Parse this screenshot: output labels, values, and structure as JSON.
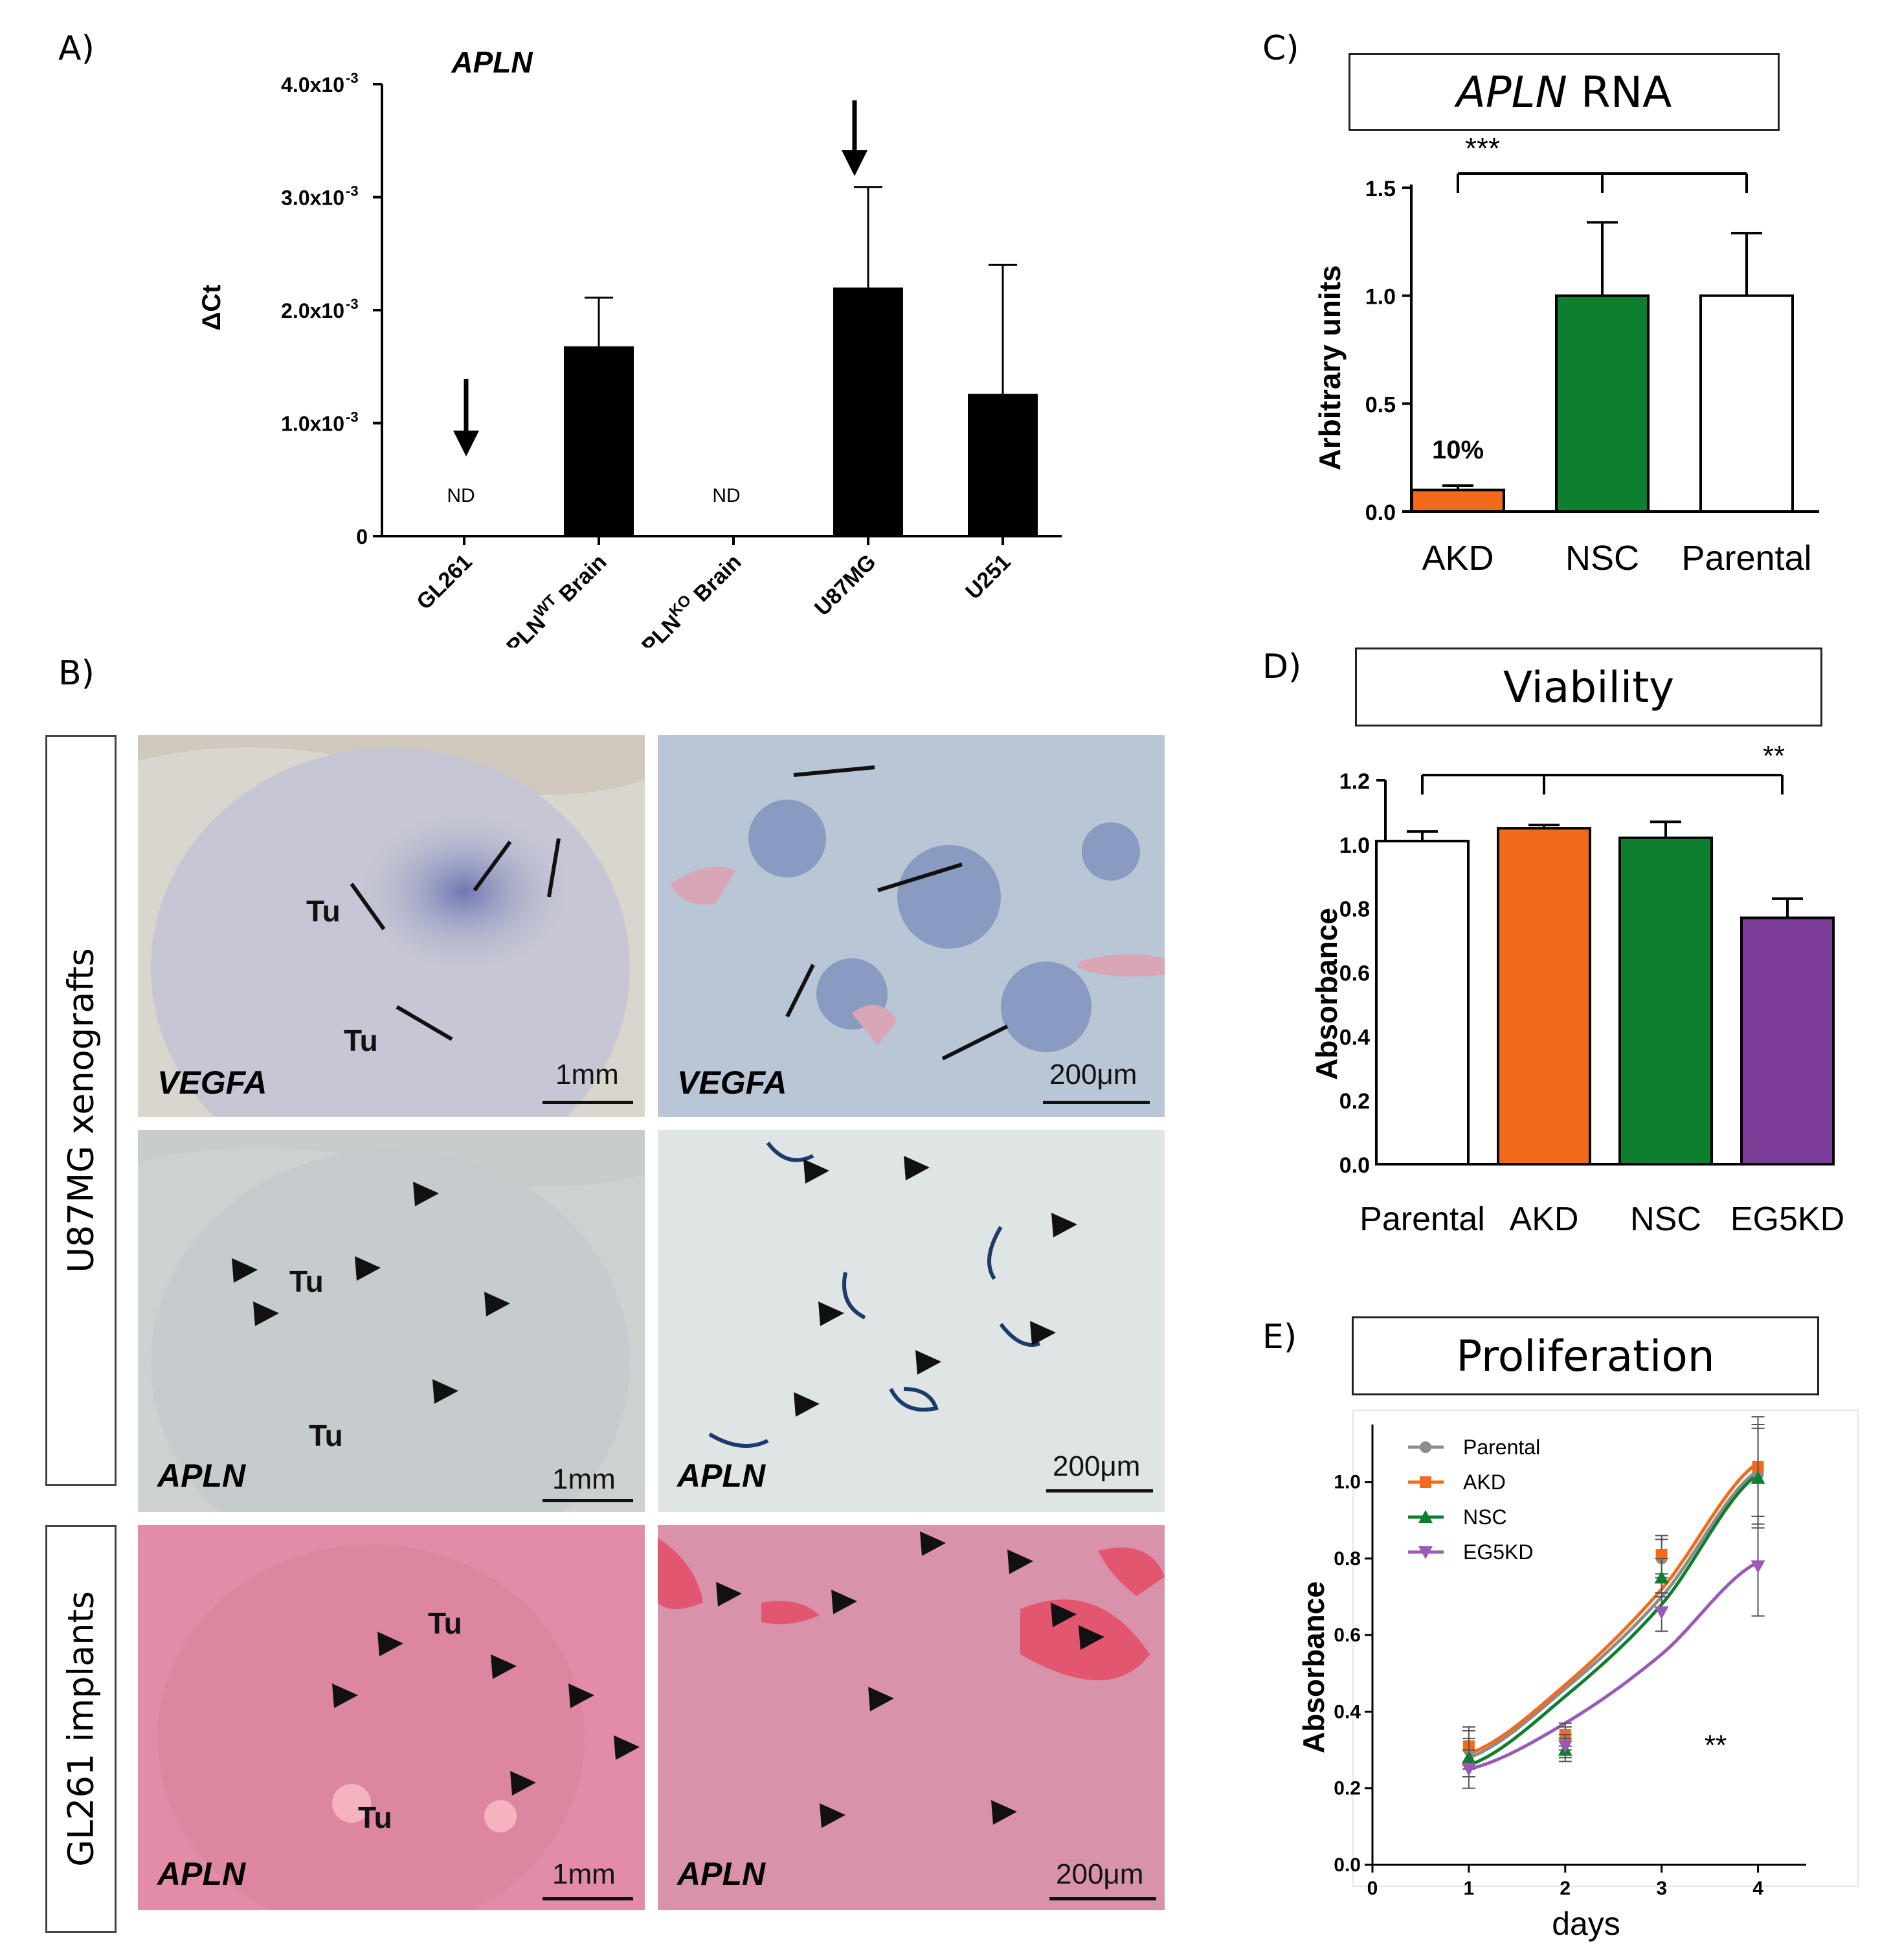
{
  "panel_labels": {
    "a": "A)",
    "b": "B)",
    "c": "C)",
    "d": "D)",
    "e": "E)"
  },
  "chart_data": [
    {
      "id": "A",
      "type": "bar",
      "title": "APLN",
      "ylabel": "ΔCt",
      "xlabel": "",
      "ylim": [
        0,
        0.004
      ],
      "yticks": [
        {
          "value": 0,
          "label": "0"
        },
        {
          "value": 0.001,
          "label": "1.0x10",
          "exp": "-3"
        },
        {
          "value": 0.002,
          "label": "2.0x10",
          "exp": "-3"
        },
        {
          "value": 0.003,
          "label": "3.0x10",
          "exp": "-3"
        },
        {
          "value": 0.004,
          "label": "4.0x10",
          "exp": "-3"
        }
      ],
      "categories": [
        "GL261",
        "APLNWT Brain",
        "APLNKO Brain",
        "U87MG",
        "U251"
      ],
      "category_labels": [
        {
          "main": "GL261",
          "sup": "",
          "tail": ""
        },
        {
          "main": "APLN",
          "sup": "WT",
          "tail": " Brain"
        },
        {
          "main": "APLN",
          "sup": "KO",
          "tail": " Brain"
        },
        {
          "main": "U87MG",
          "sup": "",
          "tail": ""
        },
        {
          "main": "U251",
          "sup": "",
          "tail": ""
        }
      ],
      "values": [
        null,
        0.00168,
        null,
        0.0022,
        0.00126
      ],
      "errors": [
        null,
        0.00043,
        null,
        0.00089,
        0.00114
      ],
      "bar_color": "#000000",
      "annotations": [
        "ND",
        "ND"
      ]
    },
    {
      "id": "C",
      "type": "bar",
      "title": "APLN RNA",
      "title_italic": "APLN",
      "title_rest": " RNA",
      "ylabel": "Arbitrary units",
      "ylim": [
        0,
        1.5
      ],
      "yticks": [
        "0.0",
        "0.5",
        "1.0",
        "1.5"
      ],
      "categories": [
        "AKD",
        "NSC",
        "Parental"
      ],
      "values": [
        0.1,
        1.0,
        1.0
      ],
      "errors": [
        0.02,
        0.34,
        0.29
      ],
      "colors": [
        "#F26A1B",
        "#0E7F2E",
        "#FFFFFF"
      ],
      "bar_annotation": "10%",
      "significance": "***"
    },
    {
      "id": "D",
      "type": "bar",
      "title": "Viability",
      "ylabel": "Absorbance",
      "ylim": [
        0,
        1.2
      ],
      "yticks": [
        "0.0",
        "0.2",
        "0.4",
        "0.6",
        "0.8",
        "1.0",
        "1.2"
      ],
      "categories": [
        "Parental",
        "AKD",
        "NSC",
        "EG5KD"
      ],
      "values": [
        1.01,
        1.05,
        1.02,
        0.77
      ],
      "errors": [
        0.03,
        0.01,
        0.05,
        0.06
      ],
      "colors": [
        "#FFFFFF",
        "#F26A1B",
        "#0E7F2E",
        "#7D3C98"
      ],
      "significance": "**"
    },
    {
      "id": "E",
      "type": "line",
      "title": "Proliferation",
      "xlabel": "days",
      "ylabel": "Absorbance",
      "xlim": [
        0,
        4.5
      ],
      "ylim": [
        0,
        1.15
      ],
      "xticks": [
        "0",
        "1",
        "2",
        "3",
        "4"
      ],
      "yticks": [
        "0.0",
        "0.2",
        "0.4",
        "0.6",
        "0.8",
        "1.0"
      ],
      "x": [
        1,
        2,
        3,
        4
      ],
      "series": [
        {
          "name": "Parental",
          "color": "#8C8C8C",
          "marker": "circle",
          "values": [
            0.3,
            0.33,
            0.8,
            1.02
          ],
          "fit": [
            0.28,
            0.46,
            0.7,
            1.03
          ]
        },
        {
          "name": "AKD",
          "color": "#F26A1B",
          "marker": "square",
          "values": [
            0.31,
            0.34,
            0.81,
            1.04
          ],
          "fit": [
            0.29,
            0.47,
            0.72,
            1.05
          ]
        },
        {
          "name": "NSC",
          "color": "#0E7F2E",
          "marker": "triangle-up",
          "values": [
            0.28,
            0.3,
            0.75,
            1.01
          ],
          "fit": [
            0.26,
            0.44,
            0.68,
            1.02
          ]
        },
        {
          "name": "EG5KD",
          "color": "#9B59B6",
          "marker": "triangle-down",
          "values": [
            0.25,
            0.31,
            0.66,
            0.78
          ],
          "fit": [
            0.25,
            0.37,
            0.55,
            0.79
          ]
        }
      ],
      "errors": [
        0.05,
        0.03,
        0.05,
        0.13
      ],
      "significance": "**"
    }
  ],
  "panel_b": {
    "row_labels": [
      "U87MG xenografts",
      "GL261 implants"
    ],
    "tumor_label": "Tu",
    "tiles": [
      {
        "gene": "VEGFA",
        "scale": "1mm"
      },
      {
        "gene": "VEGFA",
        "scale": "200μm"
      },
      {
        "gene": "APLN",
        "scale": "1mm"
      },
      {
        "gene": "APLN",
        "scale": "200μm"
      },
      {
        "gene": "APLN",
        "scale": "1mm"
      },
      {
        "gene": "APLN",
        "scale": "200μm"
      }
    ]
  }
}
